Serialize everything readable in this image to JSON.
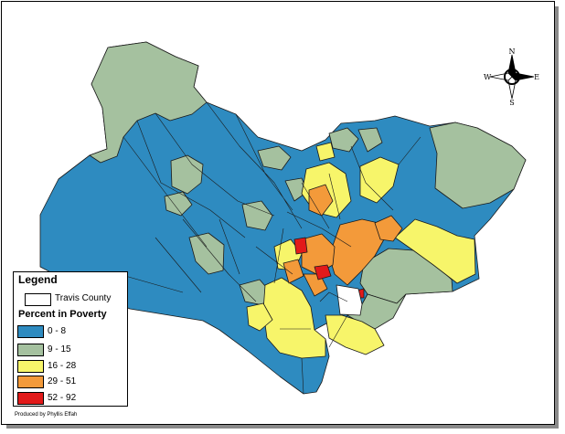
{
  "legend": {
    "title": "Legend",
    "county_label": "Travis County",
    "subtitle": "Percent in Poverty",
    "classes": [
      {
        "label": "0 - 8",
        "color": "#2e8bc0"
      },
      {
        "label": "9 - 15",
        "color": "#a5c19f"
      },
      {
        "label": "16 - 28",
        "color": "#f7f56a"
      },
      {
        "label": "29 - 51",
        "color": "#f39a3a"
      },
      {
        "label": "52 - 92",
        "color": "#e21a1a"
      }
    ]
  },
  "compass": {
    "n": "N",
    "s": "S",
    "e": "E",
    "w": "W"
  },
  "credit": "Produced by Phyllis Effah"
}
